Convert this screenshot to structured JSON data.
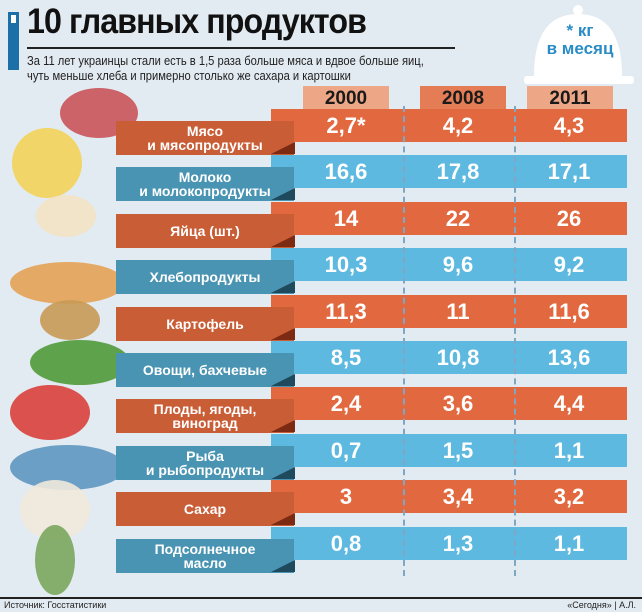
{
  "header": {
    "title": "10 главных продуктов",
    "subtitle_line1": "За 11 лет украинцы стали есть в 1,5 раза больше мяса и вдвое больше яиц,",
    "subtitle_line2": "чуть меньше хлеба и примерно столько же сахара и картошки",
    "unit_line1": "* кг",
    "unit_line2": "в месяц"
  },
  "colors": {
    "orange": "#e2693f",
    "orange_label": "#c95d36",
    "orange_shadow": "#7d2a12",
    "blue": "#5db9df",
    "blue_label": "#4a94b3",
    "blue_shadow": "#1f4a5e",
    "year_light": "#eea786",
    "year_dark": "#e47d55"
  },
  "chart_data": {
    "type": "table",
    "title": "10 главных продуктов",
    "unit": "кг в месяц",
    "columns": [
      "2000",
      "2008",
      "2011"
    ],
    "rows": [
      {
        "label1": "Мясо",
        "label2": "и мясопродукты",
        "values": [
          "2,7*",
          "4,2",
          "4,3"
        ]
      },
      {
        "label1": "Молоко",
        "label2": "и молокопродукты",
        "values": [
          "16,6",
          "17,8",
          "17,1"
        ]
      },
      {
        "label1": "Яйца (шт.)",
        "label2": "",
        "values": [
          "14",
          "22",
          "26"
        ]
      },
      {
        "label1": "Хлебопродукты",
        "label2": "",
        "values": [
          "10,3",
          "9,6",
          "9,2"
        ]
      },
      {
        "label1": "Картофель",
        "label2": "",
        "values": [
          "11,3",
          "11",
          "11,6"
        ]
      },
      {
        "label1": "Овощи, бахчевые",
        "label2": "",
        "values": [
          "8,5",
          "10,8",
          "13,6"
        ]
      },
      {
        "label1": "Плоды, ягоды,",
        "label2": "виноград",
        "values": [
          "2,4",
          "3,6",
          "4,4"
        ]
      },
      {
        "label1": "Рыба",
        "label2": "и рыбопродукты",
        "values": [
          "0,7",
          "1,5",
          "1,1"
        ]
      },
      {
        "label1": "Сахар",
        "label2": "",
        "values": [
          "3",
          "3,4",
          "3,2"
        ]
      },
      {
        "label1": "Подсолнечное",
        "label2": "масло",
        "values": [
          "0,8",
          "1,3",
          "1,1"
        ]
      }
    ]
  },
  "footer": {
    "source": "Источник: Госстатистики",
    "credit": "«Сегодня» | А.Л."
  }
}
